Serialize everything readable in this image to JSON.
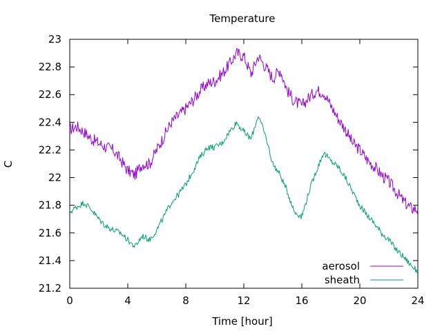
{
  "chart_data": {
    "type": "line",
    "title": "Temperature",
    "xlabel": "Time [hour]",
    "ylabel": "C",
    "xlim": [
      0,
      24
    ],
    "ylim": [
      21.2,
      23
    ],
    "xticks": [
      "0",
      "4",
      "8",
      "12",
      "16",
      "20",
      "24"
    ],
    "yticks": [
      "21.2",
      "21.4",
      "21.6",
      "21.8",
      "22",
      "22.2",
      "22.4",
      "22.6",
      "22.8",
      "23"
    ],
    "grid": false,
    "legend_position": "bottom-right",
    "series": [
      {
        "name": "aerosol",
        "color": "#9400d3",
        "x": [
          0,
          0.5,
          1,
          1.5,
          2,
          2.5,
          3,
          3.5,
          4,
          4.5,
          5,
          5.5,
          6,
          6.5,
          7,
          7.5,
          8,
          8.5,
          9,
          9.5,
          10,
          10.5,
          11,
          11.5,
          12,
          12.5,
          13,
          13.5,
          14,
          14.5,
          15,
          15.5,
          16,
          16.5,
          17,
          17.5,
          18,
          18.5,
          19,
          19.5,
          20,
          20.5,
          21,
          21.5,
          22,
          22.5,
          23,
          23.5,
          24
        ],
        "y": [
          22.35,
          22.37,
          22.33,
          22.28,
          22.25,
          22.22,
          22.2,
          22.13,
          22.05,
          22.02,
          22.1,
          22.1,
          22.2,
          22.3,
          22.4,
          22.45,
          22.5,
          22.56,
          22.63,
          22.68,
          22.7,
          22.75,
          22.82,
          22.9,
          22.88,
          22.75,
          22.88,
          22.8,
          22.72,
          22.78,
          22.63,
          22.55,
          22.52,
          22.58,
          22.63,
          22.62,
          22.52,
          22.43,
          22.35,
          22.25,
          22.2,
          22.13,
          22.08,
          22.02,
          21.97,
          21.9,
          21.83,
          21.78,
          21.77
        ]
      },
      {
        "name": "sheath",
        "color": "#009e73",
        "x": [
          0,
          0.5,
          1,
          1.5,
          2,
          2.5,
          3,
          3.5,
          4,
          4.5,
          5,
          5.5,
          6,
          6.5,
          7,
          7.5,
          8,
          8.5,
          9,
          9.5,
          10,
          10.5,
          11,
          11.5,
          12,
          12.5,
          13,
          13.5,
          14,
          14.5,
          15,
          15.5,
          16,
          16.5,
          17,
          17.5,
          18,
          18.5,
          19,
          19.5,
          20,
          20.5,
          21,
          21.5,
          22,
          22.5,
          23,
          23.5,
          24
        ],
        "y": [
          21.75,
          21.79,
          21.82,
          21.77,
          21.7,
          21.65,
          21.62,
          21.6,
          21.55,
          21.5,
          21.58,
          21.55,
          21.62,
          21.72,
          21.82,
          21.88,
          21.95,
          22.05,
          22.15,
          22.22,
          22.22,
          22.25,
          22.33,
          22.4,
          22.33,
          22.28,
          22.45,
          22.3,
          22.1,
          22.02,
          21.9,
          21.75,
          21.72,
          21.9,
          22.05,
          22.18,
          22.12,
          22.08,
          22.0,
          21.9,
          21.8,
          21.73,
          21.67,
          21.6,
          21.55,
          21.48,
          21.43,
          21.37,
          21.32
        ]
      }
    ]
  }
}
